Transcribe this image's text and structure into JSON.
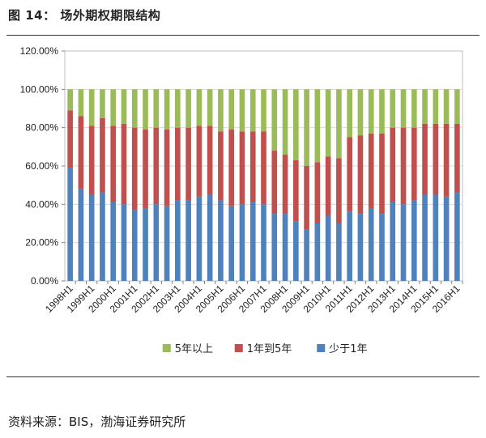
{
  "figure": {
    "label": "图 14：",
    "title": "场外期权期限结构"
  },
  "source": {
    "text": "资料来源：BIS，渤海证券研究所"
  },
  "colors": {
    "under_1y": "#4f81bd",
    "y1_to_5y": "#c0504d",
    "over_5y": "#9bbb59"
  },
  "chart_data": {
    "type": "bar",
    "stacked": true,
    "title": "",
    "xlabel": "",
    "ylabel": "",
    "ylim": [
      0,
      120
    ],
    "yticks": [
      "0.00%",
      "20.00%",
      "40.00%",
      "60.00%",
      "80.00%",
      "100.00%",
      "120.00%"
    ],
    "legend_position": "bottom",
    "categories": [
      "1998H1",
      "1998H2",
      "1999H1",
      "1999H2",
      "2000H1",
      "2000H2",
      "2001H1",
      "2001H2",
      "2002H1",
      "2002H2",
      "2003H1",
      "2003H2",
      "2004H1",
      "2004H2",
      "2005H1",
      "2005H2",
      "2006H1",
      "2006H2",
      "2007H1",
      "2007H2",
      "2008H1",
      "2008H2",
      "2009H1",
      "2009H2",
      "2010H1",
      "2010H2",
      "2011H1",
      "2011H2",
      "2012H1",
      "2012H2",
      "2013H1",
      "2013H2",
      "2014H1",
      "2014H2",
      "2015H1",
      "2015H2",
      "2016H1"
    ],
    "tick_labels": [
      "1998H1",
      "1999H1",
      "2000H1",
      "2001H1",
      "2002H1",
      "2003H1",
      "2004H1",
      "2005H1",
      "2006H1",
      "2007H1",
      "2008H1",
      "2009H1",
      "2010H1",
      "2011H1",
      "2012H1",
      "2013H1",
      "2014H1",
      "2015H1",
      "2016H1"
    ],
    "series": [
      {
        "name": "少于1年",
        "key": "under_1y",
        "values": [
          59,
          48,
          45,
          46,
          41,
          40,
          37,
          38,
          40,
          39,
          42,
          42,
          44,
          45,
          42,
          39,
          40,
          41,
          40,
          35,
          35,
          31,
          27,
          30,
          34,
          30,
          36,
          35,
          38,
          35,
          41,
          40,
          42,
          45,
          45,
          44,
          46
        ]
      },
      {
        "name": "1年到5年",
        "key": "y1_to_5y",
        "values": [
          30,
          38,
          36,
          39,
          40,
          42,
          43,
          41,
          40,
          40,
          38,
          38,
          37,
          36,
          36,
          40,
          38,
          37,
          38,
          33,
          31,
          32,
          33,
          32,
          31,
          34,
          39,
          41,
          39,
          42,
          39,
          40,
          38,
          37,
          37,
          38,
          36
        ]
      },
      {
        "name": "5年以上",
        "key": "over_5y",
        "values": [
          11,
          14,
          19,
          15,
          19,
          18,
          20,
          21,
          20,
          21,
          20,
          20,
          19,
          19,
          22,
          21,
          22,
          22,
          22,
          32,
          34,
          37,
          40,
          38,
          35,
          36,
          25,
          24,
          23,
          23,
          20,
          20,
          20,
          18,
          18,
          18,
          18
        ]
      }
    ],
    "legend_order": [
      "over_5y",
      "y1_to_5y",
      "under_1y"
    ]
  }
}
